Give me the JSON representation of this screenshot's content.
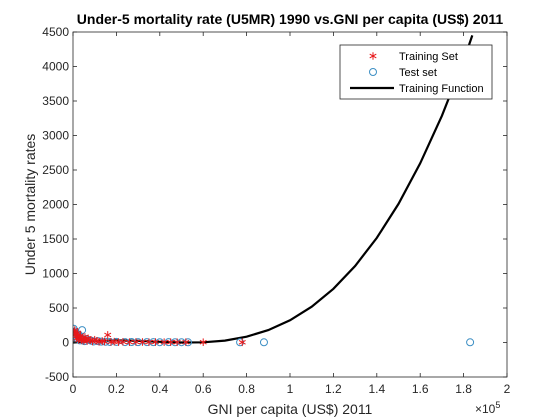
{
  "chart_data": {
    "type": "scatter",
    "title": "Under-5 mortality rate (U5MR) 1990 vs.GNI per capita (US$) 2011",
    "xlabel": "GNI per capita (US$) 2011",
    "ylabel": "Under 5 mortality rates",
    "x_exponent_base": "×10",
    "x_exponent_power": "5",
    "xlim": [
      0,
      200000
    ],
    "ylim": [
      -500,
      4500
    ],
    "x_ticks": [
      0,
      20000,
      40000,
      60000,
      80000,
      100000,
      120000,
      140000,
      160000,
      180000,
      200000
    ],
    "x_tick_labels": [
      "0",
      "0.2",
      "0.4",
      "0.6",
      "0.8",
      "1",
      "1.2",
      "1.4",
      "1.6",
      "1.8",
      "2"
    ],
    "y_ticks": [
      -500,
      0,
      500,
      1000,
      1500,
      2000,
      2500,
      3000,
      3500,
      4000,
      4500
    ],
    "y_tick_labels": [
      "-500",
      "0",
      "500",
      "1000",
      "1500",
      "2000",
      "2500",
      "3000",
      "3500",
      "4000",
      "4500"
    ],
    "grid": false,
    "legend_position": "top-right",
    "colors": {
      "training": "#e8191b",
      "test": "#3d8fc4",
      "function": "#000000",
      "axes": "#262626"
    },
    "series": [
      {
        "name": "Training Set",
        "marker": "asterisk",
        "x": [
          500,
          800,
          1200,
          1500,
          1800,
          2200,
          2600,
          3000,
          3500,
          4000,
          4500,
          5000,
          5500,
          6000,
          6500,
          7000,
          8000,
          9000,
          10000,
          11000,
          12000,
          13500,
          14500,
          16000,
          17500,
          19000,
          21000,
          23000,
          26000,
          29000,
          32000,
          35000,
          38000,
          42000,
          45000,
          48000,
          52000,
          60000,
          78000
        ],
        "y": [
          150,
          180,
          120,
          90,
          60,
          140,
          40,
          70,
          100,
          30,
          50,
          25,
          80,
          45,
          20,
          60,
          35,
          15,
          40,
          25,
          10,
          20,
          15,
          110,
          8,
          12,
          6,
          10,
          5,
          8,
          7,
          4,
          6,
          5,
          5,
          4,
          5,
          4,
          3
        ]
      },
      {
        "name": "Test set",
        "marker": "circle",
        "x": [
          300,
          700,
          1000,
          1400,
          1700,
          2000,
          2400,
          2800,
          3200,
          3700,
          4200,
          4800,
          5300,
          6200,
          7500,
          8500,
          9500,
          11500,
          13000,
          15000,
          17000,
          20000,
          24000,
          27000,
          30000,
          34000,
          37000,
          40000,
          44000,
          47000,
          50000,
          53000,
          77000,
          88000,
          183000
        ],
        "y": [
          200,
          100,
          160,
          70,
          130,
          55,
          90,
          110,
          30,
          65,
          180,
          40,
          20,
          50,
          35,
          25,
          15,
          20,
          12,
          10,
          8,
          9,
          6,
          7,
          5,
          6,
          5,
          4,
          5,
          4,
          4,
          3,
          3,
          3,
          3
        ]
      },
      {
        "name": "Training Function",
        "type": "line",
        "x": [
          0,
          10000,
          20000,
          30000,
          40000,
          50000,
          60000,
          70000,
          80000,
          90000,
          100000,
          110000,
          120000,
          130000,
          140000,
          150000,
          160000,
          170000,
          180000,
          184000
        ],
        "y": [
          0,
          22,
          30,
          24,
          10,
          0,
          3,
          28,
          84,
          180,
          322,
          519,
          778,
          1108,
          1516,
          2009,
          2597,
          3285,
          4083,
          4450
        ]
      }
    ]
  }
}
